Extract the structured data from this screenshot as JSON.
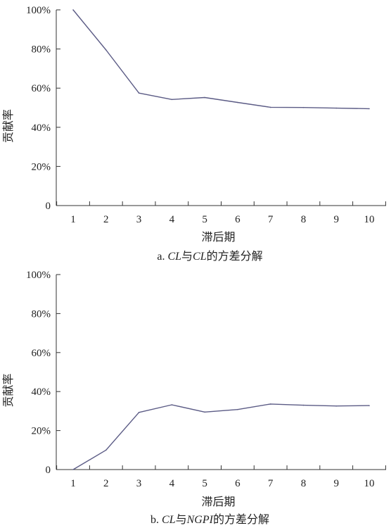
{
  "chart_data": [
    {
      "type": "line",
      "caption_prefix": "a. ",
      "caption_parts": [
        "CL",
        "与",
        "CL",
        "的方差分解"
      ],
      "xlabel": "滞后期",
      "ylabel": "贡献率",
      "x": [
        1,
        2,
        3,
        4,
        5,
        6,
        7,
        8,
        9,
        10
      ],
      "series": [
        {
          "values": [
            100,
            79.5,
            57.5,
            54.2,
            55.2,
            52.7,
            50.2,
            50.1,
            49.8,
            49.5
          ]
        }
      ],
      "xlim": [
        1,
        10
      ],
      "ylim": [
        0,
        100
      ],
      "yticks": [
        0,
        20,
        40,
        60,
        80,
        100
      ],
      "ytick_labels": [
        "0",
        "20%",
        "40%",
        "60%",
        "80%",
        "100%"
      ],
      "grid": false,
      "line_color": "#5b5b85"
    },
    {
      "type": "line",
      "caption_prefix": "b. ",
      "caption_parts": [
        "CL",
        "与",
        "NGPI",
        "的方差分解"
      ],
      "xlabel": "滞后期",
      "ylabel": "贡献率",
      "x": [
        1,
        2,
        3,
        4,
        5,
        6,
        7,
        8,
        9,
        10
      ],
      "series": [
        {
          "values": [
            0,
            10,
            29.3,
            33.2,
            29.5,
            30.8,
            33.6,
            33,
            32.6,
            32.8
          ]
        }
      ],
      "xlim": [
        1,
        10
      ],
      "ylim": [
        0,
        100
      ],
      "yticks": [
        0,
        20,
        40,
        60,
        80,
        100
      ],
      "ytick_labels": [
        "0",
        "20%",
        "40%",
        "60%",
        "80%",
        "100%"
      ],
      "grid": false,
      "line_color": "#5b5b85"
    }
  ]
}
